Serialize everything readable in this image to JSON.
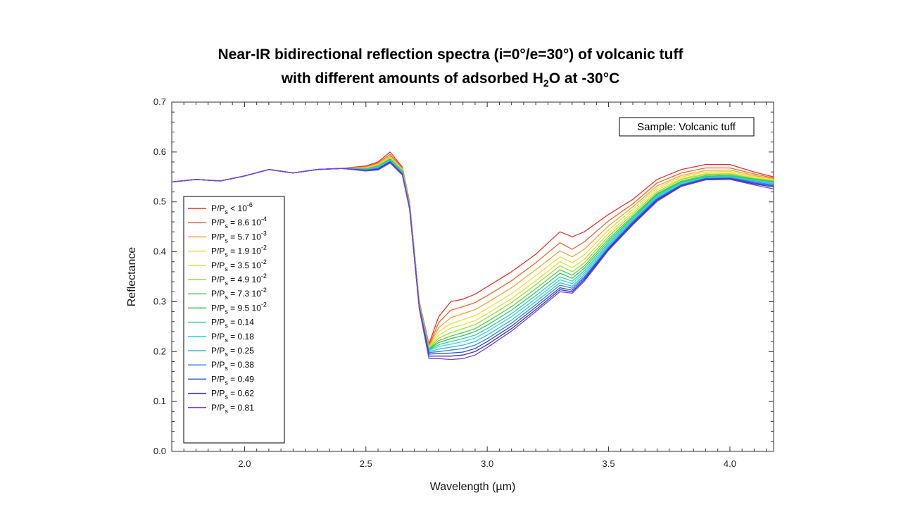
{
  "chart_data": {
    "type": "line",
    "title_line1": "Near-IR bidirectional reflection spectra (i=0°/e=30°) of volcanic tuff",
    "title_line2_pre": "with different amounts of adsorbed H",
    "title_line2_sub": "2",
    "title_line2_post": "O at -30°C",
    "xlabel": "Wavelength (µm)",
    "ylabel": "Reflectance",
    "xlim": [
      1.7,
      4.18
    ],
    "ylim": [
      0.0,
      0.7
    ],
    "x_ticks": [
      "2.0",
      "2.5",
      "3.0",
      "3.5",
      "4.0"
    ],
    "x_tick_values": [
      2.0,
      2.5,
      3.0,
      3.5,
      4.0
    ],
    "y_ticks": [
      "0.0",
      "0.1",
      "0.2",
      "0.3",
      "0.4",
      "0.5",
      "0.6",
      "0.7"
    ],
    "y_tick_values": [
      0.0,
      0.1,
      0.2,
      0.3,
      0.4,
      0.5,
      0.6,
      0.7
    ],
    "annotation": "Sample: Volcanic tuff",
    "legend_position": "left",
    "x": [
      1.7,
      1.8,
      1.9,
      2.0,
      2.1,
      2.2,
      2.3,
      2.4,
      2.5,
      2.55,
      2.6,
      2.65,
      2.68,
      2.72,
      2.76,
      2.8,
      2.85,
      2.9,
      2.95,
      3.0,
      3.1,
      3.2,
      3.3,
      3.35,
      3.4,
      3.5,
      3.6,
      3.7,
      3.8,
      3.9,
      4.0,
      4.1,
      4.18
    ],
    "series": [
      {
        "name": "P/Ps < 10^-6",
        "label_main": "P/P",
        "label_sub": "s",
        "label_rest": " < 10",
        "label_sup": "-6",
        "color": "#e8312a",
        "values": [
          0.54,
          0.545,
          0.542,
          0.552,
          0.565,
          0.558,
          0.565,
          0.567,
          0.572,
          0.58,
          0.6,
          0.57,
          0.5,
          0.3,
          0.215,
          0.27,
          0.3,
          0.305,
          0.315,
          0.33,
          0.36,
          0.395,
          0.44,
          0.43,
          0.44,
          0.475,
          0.505,
          0.545,
          0.565,
          0.575,
          0.575,
          0.56,
          0.55
        ]
      },
      {
        "name": "P/Ps = 8.6 10^-4",
        "label_main": "P/P",
        "label_sub": "s",
        "label_rest": " = 8.6 10",
        "label_sup": "-4",
        "color": "#f0642c",
        "values": [
          0.54,
          0.545,
          0.542,
          0.552,
          0.565,
          0.558,
          0.565,
          0.567,
          0.57,
          0.578,
          0.595,
          0.568,
          0.498,
          0.298,
          0.212,
          0.258,
          0.283,
          0.29,
          0.298,
          0.312,
          0.342,
          0.378,
          0.418,
          0.405,
          0.42,
          0.462,
          0.496,
          0.538,
          0.558,
          0.568,
          0.568,
          0.556,
          0.548
        ]
      },
      {
        "name": "P/Ps = 5.7 10^-3",
        "label_main": "P/P",
        "label_sub": "s",
        "label_rest": " = 5.7 10",
        "label_sup": "-3",
        "color": "#f5a23a",
        "values": [
          0.54,
          0.545,
          0.542,
          0.552,
          0.565,
          0.558,
          0.565,
          0.567,
          0.569,
          0.576,
          0.592,
          0.566,
          0.497,
          0.297,
          0.21,
          0.248,
          0.268,
          0.276,
          0.284,
          0.298,
          0.328,
          0.364,
          0.402,
          0.39,
          0.405,
          0.452,
          0.49,
          0.532,
          0.553,
          0.563,
          0.564,
          0.553,
          0.546
        ]
      },
      {
        "name": "P/Ps = 1.9 10^-2",
        "label_main": "P/P",
        "label_sub": "s",
        "label_rest": " = 1.9 10",
        "label_sup": "-2",
        "color": "#f7d83a",
        "values": [
          0.54,
          0.545,
          0.542,
          0.552,
          0.565,
          0.558,
          0.565,
          0.567,
          0.568,
          0.575,
          0.59,
          0.565,
          0.496,
          0.296,
          0.208,
          0.24,
          0.256,
          0.264,
          0.272,
          0.286,
          0.316,
          0.352,
          0.39,
          0.378,
          0.394,
          0.444,
          0.485,
          0.528,
          0.55,
          0.56,
          0.561,
          0.551,
          0.545
        ]
      },
      {
        "name": "P/Ps = 3.5 10^-2",
        "label_main": "P/P",
        "label_sub": "s",
        "label_rest": " = 3.5 10",
        "label_sup": "-2",
        "color": "#d6e63a",
        "values": [
          0.54,
          0.545,
          0.542,
          0.552,
          0.565,
          0.558,
          0.565,
          0.567,
          0.567,
          0.574,
          0.588,
          0.564,
          0.495,
          0.295,
          0.207,
          0.233,
          0.247,
          0.254,
          0.262,
          0.276,
          0.306,
          0.342,
          0.38,
          0.368,
          0.385,
          0.437,
          0.48,
          0.524,
          0.547,
          0.557,
          0.558,
          0.549,
          0.543
        ]
      },
      {
        "name": "P/Ps = 4.9 10^-2",
        "label_main": "P/P",
        "label_sub": "s",
        "label_rest": " = 4.9 10",
        "label_sup": "-2",
        "color": "#97dd3c",
        "values": [
          0.54,
          0.545,
          0.542,
          0.552,
          0.565,
          0.558,
          0.565,
          0.567,
          0.567,
          0.573,
          0.587,
          0.563,
          0.494,
          0.294,
          0.206,
          0.227,
          0.238,
          0.246,
          0.254,
          0.268,
          0.298,
          0.334,
          0.372,
          0.36,
          0.378,
          0.431,
          0.476,
          0.52,
          0.545,
          0.555,
          0.556,
          0.547,
          0.542
        ]
      },
      {
        "name": "P/Ps = 7.3 10^-2",
        "label_main": "P/P",
        "label_sub": "s",
        "label_rest": " = 7.3 10",
        "label_sup": "-2",
        "color": "#4fd23e",
        "values": [
          0.54,
          0.545,
          0.542,
          0.552,
          0.565,
          0.558,
          0.565,
          0.567,
          0.566,
          0.572,
          0.586,
          0.562,
          0.493,
          0.293,
          0.205,
          0.222,
          0.231,
          0.238,
          0.246,
          0.26,
          0.29,
          0.326,
          0.364,
          0.353,
          0.372,
          0.426,
          0.472,
          0.517,
          0.542,
          0.553,
          0.554,
          0.546,
          0.541
        ]
      },
      {
        "name": "P/Ps = 9.5 10^-2",
        "label_main": "P/P",
        "label_sub": "s",
        "label_rest": " = 9.5 10",
        "label_sup": "-2",
        "color": "#2ec45a",
        "values": [
          0.54,
          0.545,
          0.542,
          0.552,
          0.565,
          0.558,
          0.565,
          0.567,
          0.566,
          0.571,
          0.585,
          0.561,
          0.492,
          0.292,
          0.204,
          0.218,
          0.226,
          0.232,
          0.24,
          0.253,
          0.283,
          0.319,
          0.357,
          0.347,
          0.367,
          0.422,
          0.469,
          0.515,
          0.54,
          0.551,
          0.552,
          0.545,
          0.54
        ]
      },
      {
        "name": "P/Ps = 0.14",
        "label_main": "P/P",
        "label_sub": "s",
        "label_rest": " = 0.14",
        "label_sup": "",
        "color": "#2fd0a8",
        "values": [
          0.54,
          0.545,
          0.542,
          0.552,
          0.565,
          0.558,
          0.565,
          0.567,
          0.565,
          0.57,
          0.584,
          0.56,
          0.491,
          0.291,
          0.203,
          0.214,
          0.22,
          0.226,
          0.233,
          0.246,
          0.276,
          0.312,
          0.35,
          0.341,
          0.362,
          0.418,
          0.466,
          0.513,
          0.538,
          0.55,
          0.551,
          0.544,
          0.539
        ]
      },
      {
        "name": "P/Ps = 0.18",
        "label_main": "P/P",
        "label_sub": "s",
        "label_rest": " = 0.18",
        "label_sup": "",
        "color": "#35d8d8",
        "values": [
          0.54,
          0.545,
          0.542,
          0.552,
          0.565,
          0.558,
          0.565,
          0.567,
          0.565,
          0.569,
          0.583,
          0.559,
          0.49,
          0.29,
          0.202,
          0.21,
          0.215,
          0.22,
          0.227,
          0.24,
          0.27,
          0.306,
          0.344,
          0.336,
          0.358,
          0.415,
          0.464,
          0.511,
          0.537,
          0.549,
          0.55,
          0.543,
          0.538
        ]
      },
      {
        "name": "P/Ps = 0.25",
        "label_main": "P/P",
        "label_sub": "s",
        "label_rest": " = 0.25",
        "label_sup": "",
        "color": "#33b8ee",
        "values": [
          0.54,
          0.545,
          0.542,
          0.552,
          0.565,
          0.558,
          0.565,
          0.567,
          0.564,
          0.568,
          0.582,
          0.558,
          0.489,
          0.289,
          0.2,
          0.205,
          0.209,
          0.213,
          0.22,
          0.233,
          0.263,
          0.3,
          0.338,
          0.331,
          0.354,
          0.412,
          0.462,
          0.509,
          0.535,
          0.548,
          0.549,
          0.542,
          0.536
        ]
      },
      {
        "name": "P/Ps = 0.38",
        "label_main": "P/P",
        "label_sub": "s",
        "label_rest": " = 0.38",
        "label_sup": "",
        "color": "#2f86d8",
        "values": [
          0.54,
          0.545,
          0.542,
          0.552,
          0.565,
          0.558,
          0.565,
          0.567,
          0.564,
          0.567,
          0.581,
          0.557,
          0.488,
          0.288,
          0.198,
          0.2,
          0.203,
          0.206,
          0.213,
          0.226,
          0.257,
          0.294,
          0.333,
          0.327,
          0.35,
          0.409,
          0.46,
          0.507,
          0.534,
          0.547,
          0.548,
          0.54,
          0.534
        ]
      },
      {
        "name": "P/Ps = 0.49",
        "label_main": "P/P",
        "label_sub": "s",
        "label_rest": " = 0.49",
        "label_sup": "",
        "color": "#2a4fd0",
        "values": [
          0.54,
          0.545,
          0.542,
          0.552,
          0.565,
          0.558,
          0.565,
          0.567,
          0.563,
          0.566,
          0.58,
          0.556,
          0.487,
          0.287,
          0.195,
          0.196,
          0.197,
          0.199,
          0.206,
          0.22,
          0.251,
          0.289,
          0.328,
          0.323,
          0.347,
          0.407,
          0.458,
          0.505,
          0.533,
          0.546,
          0.547,
          0.538,
          0.532
        ]
      },
      {
        "name": "P/Ps = 0.62",
        "label_main": "P/P",
        "label_sub": "s",
        "label_rest": " = 0.62",
        "label_sup": "",
        "color": "#3b2fc8",
        "values": [
          0.54,
          0.545,
          0.542,
          0.552,
          0.565,
          0.558,
          0.565,
          0.567,
          0.563,
          0.565,
          0.579,
          0.555,
          0.486,
          0.286,
          0.191,
          0.191,
          0.191,
          0.193,
          0.2,
          0.214,
          0.246,
          0.284,
          0.324,
          0.32,
          0.344,
          0.405,
          0.456,
          0.503,
          0.532,
          0.545,
          0.546,
          0.536,
          0.53
        ]
      },
      {
        "name": "P/Ps = 0.81",
        "label_main": "P/P",
        "label_sub": "s",
        "label_rest": " = 0.81",
        "label_sup": "",
        "color": "#7a3fe0",
        "values": [
          0.54,
          0.545,
          0.542,
          0.552,
          0.565,
          0.558,
          0.565,
          0.567,
          0.562,
          0.564,
          0.578,
          0.554,
          0.485,
          0.285,
          0.186,
          0.186,
          0.184,
          0.186,
          0.193,
          0.208,
          0.241,
          0.28,
          0.32,
          0.317,
          0.341,
          0.403,
          0.454,
          0.501,
          0.531,
          0.544,
          0.545,
          0.534,
          0.526
        ]
      }
    ]
  }
}
